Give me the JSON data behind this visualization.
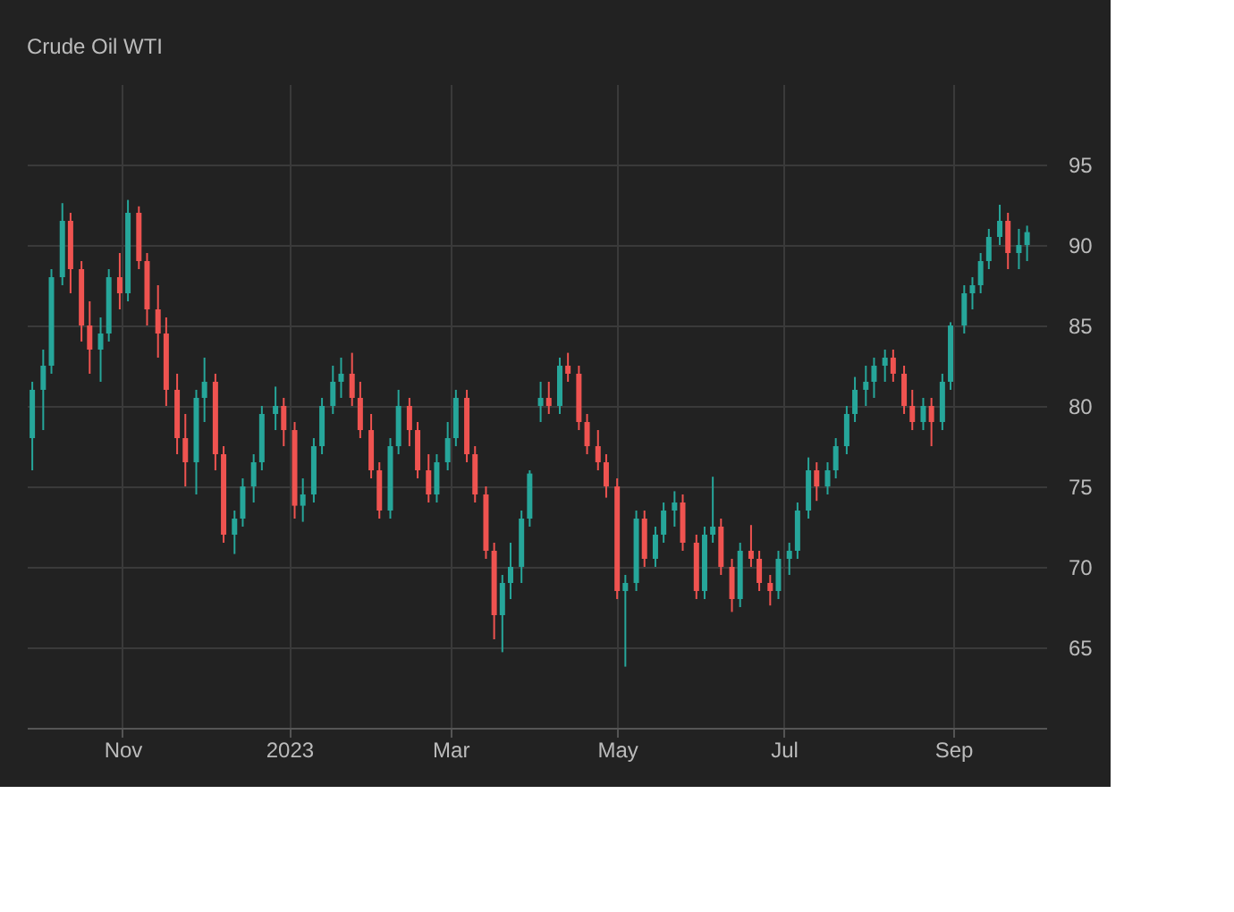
{
  "chart_data": {
    "type": "candlestick",
    "title": "Crude Oil WTI",
    "xlim": [
      "2022-09-27",
      "2023-10-05"
    ],
    "xticks": [
      {
        "value": "2022-11-01",
        "label": "Nov"
      },
      {
        "value": "2023-01-01",
        "label": "2023"
      },
      {
        "value": "2023-03-01",
        "label": "Mar"
      },
      {
        "value": "2023-05-01",
        "label": "May"
      },
      {
        "value": "2023-07-01",
        "label": "Jul"
      },
      {
        "value": "2023-09-01",
        "label": "Sep"
      }
    ],
    "ylim": [
      60,
      100
    ],
    "yticks": [
      65,
      70,
      75,
      80,
      85,
      90,
      95
    ],
    "grid": true,
    "x": [
      "2022-09-29",
      "2022-10-03",
      "2022-10-06",
      "2022-10-10",
      "2022-10-13",
      "2022-10-17",
      "2022-10-20",
      "2022-10-24",
      "2022-10-27",
      "2022-10-31",
      "2022-11-03",
      "2022-11-07",
      "2022-11-10",
      "2022-11-14",
      "2022-11-17",
      "2022-11-21",
      "2022-11-24",
      "2022-11-28",
      "2022-12-01",
      "2022-12-05",
      "2022-12-08",
      "2022-12-12",
      "2022-12-15",
      "2022-12-19",
      "2022-12-22",
      "2022-12-27",
      "2022-12-30",
      "2023-01-03",
      "2023-01-06",
      "2023-01-10",
      "2023-01-13",
      "2023-01-17",
      "2023-01-20",
      "2023-01-24",
      "2023-01-27",
      "2023-01-31",
      "2023-02-03",
      "2023-02-07",
      "2023-02-10",
      "2023-02-14",
      "2023-02-17",
      "2023-02-21",
      "2023-02-24",
      "2023-02-28",
      "2023-03-03",
      "2023-03-07",
      "2023-03-10",
      "2023-03-14",
      "2023-03-17",
      "2023-03-20",
      "2023-03-23",
      "2023-03-27",
      "2023-03-30",
      "2023-04-03",
      "2023-04-06",
      "2023-04-10",
      "2023-04-13",
      "2023-04-17",
      "2023-04-20",
      "2023-04-24",
      "2023-04-27",
      "2023-05-01",
      "2023-05-04",
      "2023-05-08",
      "2023-05-11",
      "2023-05-15",
      "2023-05-18",
      "2023-05-22",
      "2023-05-25",
      "2023-05-30",
      "2023-06-02",
      "2023-06-05",
      "2023-06-08",
      "2023-06-12",
      "2023-06-15",
      "2023-06-19",
      "2023-06-22",
      "2023-06-26",
      "2023-06-29",
      "2023-07-03",
      "2023-07-06",
      "2023-07-10",
      "2023-07-13",
      "2023-07-17",
      "2023-07-20",
      "2023-07-24",
      "2023-07-27",
      "2023-07-31",
      "2023-08-03",
      "2023-08-07",
      "2023-08-10",
      "2023-08-14",
      "2023-08-17",
      "2023-08-21",
      "2023-08-24",
      "2023-08-28",
      "2023-08-31",
      "2023-09-05",
      "2023-09-08",
      "2023-09-11",
      "2023-09-14",
      "2023-09-18",
      "2023-09-21",
      "2023-09-25",
      "2023-09-28"
    ],
    "ohlc": [
      [
        78,
        81.5,
        76,
        81
      ],
      [
        81,
        83.5,
        78.5,
        82.5
      ],
      [
        82.5,
        88.5,
        82,
        88
      ],
      [
        88,
        92.6,
        87.5,
        91.5
      ],
      [
        91.5,
        92,
        87,
        88.5
      ],
      [
        88.5,
        89,
        84,
        85
      ],
      [
        85,
        86.5,
        82,
        83.5
      ],
      [
        83.5,
        85.5,
        81.5,
        84.5
      ],
      [
        84.5,
        88.5,
        84,
        88
      ],
      [
        88,
        89.5,
        86,
        87
      ],
      [
        87,
        92.8,
        86.5,
        92
      ],
      [
        92,
        92.4,
        88.5,
        89
      ],
      [
        89,
        89.5,
        85,
        86
      ],
      [
        86,
        87.5,
        83,
        84.5
      ],
      [
        84.5,
        85.5,
        80,
        81
      ],
      [
        81,
        82,
        77,
        78
      ],
      [
        78,
        79.5,
        75,
        76.5
      ],
      [
        76.5,
        81,
        74.5,
        80.5
      ],
      [
        80.5,
        83,
        79,
        81.5
      ],
      [
        81.5,
        82,
        76,
        77
      ],
      [
        77,
        77.5,
        71.5,
        72
      ],
      [
        72,
        73.5,
        70.8,
        73
      ],
      [
        73,
        75.5,
        72.5,
        75
      ],
      [
        75,
        77,
        74,
        76.5
      ],
      [
        76.5,
        80,
        76,
        79.5
      ],
      [
        79.5,
        81.2,
        78.5,
        80
      ],
      [
        80,
        80.5,
        77.5,
        78.5
      ],
      [
        78.5,
        79,
        73,
        73.8
      ],
      [
        73.8,
        75.5,
        72.8,
        74.5
      ],
      [
        74.5,
        78,
        74,
        77.5
      ],
      [
        77.5,
        80.5,
        77,
        80
      ],
      [
        80,
        82.5,
        79.5,
        81.5
      ],
      [
        81.5,
        83,
        80.5,
        82
      ],
      [
        82,
        83.3,
        80,
        80.5
      ],
      [
        80.5,
        81.5,
        78,
        78.5
      ],
      [
        78.5,
        79.5,
        75.5,
        76
      ],
      [
        76,
        76.5,
        73,
        73.5
      ],
      [
        73.5,
        78,
        73,
        77.5
      ],
      [
        77.5,
        81,
        77,
        80
      ],
      [
        80,
        80.5,
        77.5,
        78.5
      ],
      [
        78.5,
        79,
        75.5,
        76
      ],
      [
        76,
        77,
        74,
        74.5
      ],
      [
        74.5,
        77,
        74,
        76.5
      ],
      [
        76.5,
        79,
        76,
        78
      ],
      [
        78,
        81,
        77.5,
        80.5
      ],
      [
        80.5,
        81,
        76.5,
        77
      ],
      [
        77,
        77.5,
        74,
        74.5
      ],
      [
        74.5,
        75,
        70.5,
        71
      ],
      [
        71,
        71.5,
        65.5,
        67
      ],
      [
        67,
        69.5,
        64.7,
        69
      ],
      [
        69,
        71.5,
        68,
        70
      ],
      [
        70,
        73.5,
        69,
        73
      ],
      [
        73,
        76,
        72.5,
        75.8
      ],
      [
        80,
        81.5,
        79,
        80.5
      ],
      [
        80.5,
        81.5,
        79.5,
        80
      ],
      [
        80,
        83,
        79.5,
        82.5
      ],
      [
        82.5,
        83.3,
        81.5,
        82
      ],
      [
        82,
        82.5,
        78.5,
        79
      ],
      [
        79,
        79.5,
        77,
        77.5
      ],
      [
        77.5,
        78.5,
        76,
        76.5
      ],
      [
        76.5,
        77,
        74.3,
        75
      ],
      [
        75,
        75.5,
        68,
        68.5
      ],
      [
        68.5,
        69.5,
        63.8,
        69
      ],
      [
        69,
        73.5,
        68.5,
        73
      ],
      [
        73,
        73.5,
        70,
        70.5
      ],
      [
        70.5,
        72.5,
        70,
        72
      ],
      [
        72,
        74,
        71.5,
        73.5
      ],
      [
        73.5,
        74.7,
        72.5,
        74
      ],
      [
        74,
        74.5,
        71,
        71.5
      ],
      [
        71.5,
        72,
        68,
        68.5
      ],
      [
        68.5,
        72.5,
        68,
        72
      ],
      [
        72,
        75.6,
        71.5,
        72.5
      ],
      [
        72.5,
        73,
        69.5,
        70
      ],
      [
        70,
        70.5,
        67.2,
        68
      ],
      [
        68,
        71.5,
        67.5,
        71
      ],
      [
        71,
        72.6,
        70,
        70.5
      ],
      [
        70.5,
        71,
        68.5,
        69
      ],
      [
        69,
        69.5,
        67.6,
        68.5
      ],
      [
        68.5,
        71,
        68,
        70.5
      ],
      [
        70.5,
        71.5,
        69.5,
        71
      ],
      [
        71,
        74,
        70.5,
        73.5
      ],
      [
        73.5,
        76.8,
        73,
        76
      ],
      [
        76,
        76.5,
        74.1,
        75
      ],
      [
        75,
        76.5,
        74.5,
        76
      ],
      [
        76,
        78,
        75.5,
        77.5
      ],
      [
        77.5,
        80,
        77,
        79.5
      ],
      [
        79.5,
        81.8,
        79,
        81
      ],
      [
        81,
        82.5,
        80,
        81.5
      ],
      [
        81.5,
        83,
        80.5,
        82.5
      ],
      [
        82.5,
        83.5,
        81.5,
        83
      ],
      [
        83,
        83.5,
        81.5,
        82
      ],
      [
        82,
        82.5,
        79.5,
        80
      ],
      [
        80,
        81,
        78.5,
        79
      ],
      [
        79,
        80.5,
        78.5,
        80
      ],
      [
        80,
        80.5,
        77.5,
        79
      ],
      [
        79,
        82,
        78.5,
        81.5
      ],
      [
        81.5,
        85.2,
        81,
        85
      ],
      [
        85,
        87.5,
        84.5,
        87
      ],
      [
        87,
        88,
        86,
        87.5
      ],
      [
        87.5,
        89.5,
        87,
        89
      ],
      [
        89,
        91,
        88.5,
        90.5
      ],
      [
        90.5,
        92.5,
        90,
        91.5
      ],
      [
        91.5,
        92,
        88.5,
        89.5
      ],
      [
        89.5,
        91,
        88.5,
        90
      ],
      [
        90,
        91.2,
        89,
        90.8
      ]
    ]
  }
}
